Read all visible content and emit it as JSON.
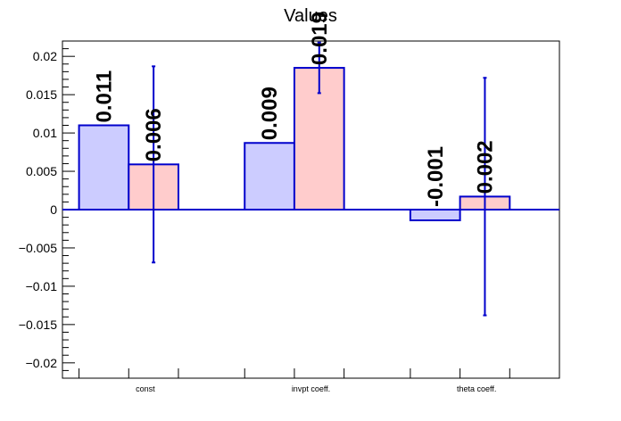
{
  "chart_data": {
    "type": "bar",
    "title": "Values",
    "xlabel": "",
    "ylabel": "",
    "categories": [
      "const",
      "invpt coeff.",
      "theta coeff."
    ],
    "ylim": [
      -0.022,
      0.022
    ],
    "yticks": [
      -0.02,
      -0.015,
      -0.01,
      -0.005,
      0,
      0.005,
      0.01,
      0.015,
      0.02
    ],
    "ytick_labels": [
      "−0.02",
      "−0.015",
      "−0.01",
      "−0.005",
      "0",
      "0.005",
      "0.01",
      "0.015",
      "0.02"
    ],
    "series": [
      {
        "values": [
          0.011,
          0.0087,
          -0.0014
        ],
        "labels": [
          "0.011",
          "0.009",
          "-0.001"
        ],
        "fill": "#ccccff",
        "stroke": "#0000cc"
      },
      {
        "values": [
          0.0059,
          0.0185,
          0.0017
        ],
        "labels": [
          "0.006",
          "0.019",
          "0.002"
        ],
        "errors": [
          0.0128,
          0.0033,
          0.0155
        ],
        "fill": "#ffcccc",
        "stroke": "#0000cc"
      }
    ],
    "grid": false,
    "legend": "none"
  }
}
